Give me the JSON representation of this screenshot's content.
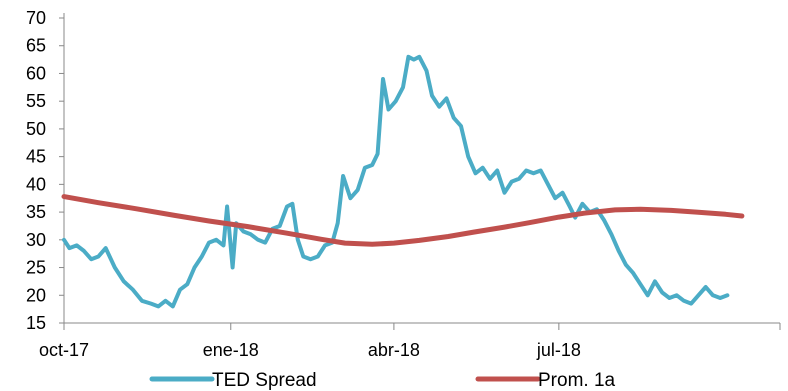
{
  "chart_data": {
    "type": "line",
    "title": "",
    "xlabel": "",
    "ylabel": "",
    "ylim": [
      15,
      70
    ],
    "yticks": [
      15,
      20,
      25,
      30,
      35,
      40,
      45,
      50,
      55,
      60,
      65,
      70
    ],
    "xlim": [
      "2017-10-01",
      "2018-10-31"
    ],
    "xticks": [
      {
        "date": "2017-10-01",
        "label": "oct-17"
      },
      {
        "date": "2018-01-01",
        "label": "ene-18"
      },
      {
        "date": "2018-04-01",
        "label": "abr-18"
      },
      {
        "date": "2018-07-01",
        "label": "jul-18"
      }
    ],
    "grid": false,
    "legend_position": "bottom",
    "series": [
      {
        "name": "TED Spread",
        "color": "#4bacc6",
        "points": [
          [
            "2017-10-01",
            30
          ],
          [
            "2017-10-04",
            28.5
          ],
          [
            "2017-10-08",
            29
          ],
          [
            "2017-10-12",
            28
          ],
          [
            "2017-10-16",
            26.5
          ],
          [
            "2017-10-20",
            27
          ],
          [
            "2017-10-24",
            28.5
          ],
          [
            "2017-10-29",
            25
          ],
          [
            "2017-11-03",
            22.5
          ],
          [
            "2017-11-08",
            21
          ],
          [
            "2017-11-13",
            19
          ],
          [
            "2017-11-18",
            18.5
          ],
          [
            "2017-11-22",
            18
          ],
          [
            "2017-11-26",
            19
          ],
          [
            "2017-11-30",
            18
          ],
          [
            "2017-12-04",
            21
          ],
          [
            "2017-12-08",
            22
          ],
          [
            "2017-12-12",
            25
          ],
          [
            "2017-12-16",
            27
          ],
          [
            "2017-12-20",
            29.5
          ],
          [
            "2017-12-24",
            30
          ],
          [
            "2017-12-28",
            29
          ],
          [
            "2017-12-30",
            36
          ],
          [
            "2018-01-02",
            25
          ],
          [
            "2018-01-04",
            33
          ],
          [
            "2018-01-08",
            31.5
          ],
          [
            "2018-01-12",
            31
          ],
          [
            "2018-01-16",
            30
          ],
          [
            "2018-01-20",
            29.5
          ],
          [
            "2018-01-24",
            32
          ],
          [
            "2018-01-28",
            32.5
          ],
          [
            "2018-02-01",
            36
          ],
          [
            "2018-02-04",
            36.5
          ],
          [
            "2018-02-07",
            30
          ],
          [
            "2018-02-10",
            27
          ],
          [
            "2018-02-14",
            26.5
          ],
          [
            "2018-02-18",
            27
          ],
          [
            "2018-02-22",
            29
          ],
          [
            "2018-02-26",
            29.5
          ],
          [
            "2018-03-01",
            33
          ],
          [
            "2018-03-04",
            41.5
          ],
          [
            "2018-03-08",
            37.5
          ],
          [
            "2018-03-12",
            39
          ],
          [
            "2018-03-16",
            43
          ],
          [
            "2018-03-20",
            43.5
          ],
          [
            "2018-03-23",
            45.5
          ],
          [
            "2018-03-26",
            59
          ],
          [
            "2018-03-29",
            53.5
          ],
          [
            "2018-04-02",
            55
          ],
          [
            "2018-04-06",
            57.5
          ],
          [
            "2018-04-09",
            63
          ],
          [
            "2018-04-12",
            62.5
          ],
          [
            "2018-04-15",
            63
          ],
          [
            "2018-04-19",
            60.5
          ],
          [
            "2018-04-22",
            56
          ],
          [
            "2018-04-26",
            54
          ],
          [
            "2018-04-30",
            55.5
          ],
          [
            "2018-05-04",
            52
          ],
          [
            "2018-05-08",
            50.5
          ],
          [
            "2018-05-12",
            45
          ],
          [
            "2018-05-16",
            42
          ],
          [
            "2018-05-20",
            43
          ],
          [
            "2018-05-24",
            41
          ],
          [
            "2018-05-28",
            42.5
          ],
          [
            "2018-06-01",
            38.5
          ],
          [
            "2018-06-05",
            40.5
          ],
          [
            "2018-06-09",
            41
          ],
          [
            "2018-06-13",
            42.5
          ],
          [
            "2018-06-17",
            42
          ],
          [
            "2018-06-21",
            42.5
          ],
          [
            "2018-06-25",
            40
          ],
          [
            "2018-06-29",
            37.5
          ],
          [
            "2018-07-03",
            38.5
          ],
          [
            "2018-07-07",
            36
          ],
          [
            "2018-07-10",
            34
          ],
          [
            "2018-07-14",
            36.5
          ],
          [
            "2018-07-18",
            35
          ],
          [
            "2018-07-22",
            35.5
          ],
          [
            "2018-07-26",
            33.5
          ],
          [
            "2018-07-30",
            31
          ],
          [
            "2018-08-03",
            28
          ],
          [
            "2018-08-07",
            25.5
          ],
          [
            "2018-08-11",
            24
          ],
          [
            "2018-08-15",
            22
          ],
          [
            "2018-08-19",
            20
          ],
          [
            "2018-08-23",
            22.5
          ],
          [
            "2018-08-27",
            20.5
          ],
          [
            "2018-08-31",
            19.5
          ],
          [
            "2018-09-04",
            20
          ],
          [
            "2018-09-08",
            19
          ],
          [
            "2018-09-12",
            18.5
          ],
          [
            "2018-09-16",
            20
          ],
          [
            "2018-09-20",
            21.5
          ],
          [
            "2018-09-24",
            20
          ],
          [
            "2018-09-28",
            19.5
          ],
          [
            "2018-10-02",
            20
          ]
        ]
      },
      {
        "name": "Prom. 1a",
        "color": "#c0504d",
        "points": [
          [
            "2017-10-01",
            37.8
          ],
          [
            "2017-10-20",
            36.7
          ],
          [
            "2017-11-10",
            35.6
          ],
          [
            "2017-12-01",
            34.4
          ],
          [
            "2017-12-20",
            33.4
          ],
          [
            "2018-01-10",
            32.4
          ],
          [
            "2018-02-01",
            31.2
          ],
          [
            "2018-02-20",
            30.1
          ],
          [
            "2018-03-05",
            29.4
          ],
          [
            "2018-03-20",
            29.2
          ],
          [
            "2018-04-01",
            29.4
          ],
          [
            "2018-04-15",
            29.9
          ],
          [
            "2018-05-01",
            30.6
          ],
          [
            "2018-05-15",
            31.4
          ],
          [
            "2018-06-01",
            32.3
          ],
          [
            "2018-06-15",
            33.1
          ],
          [
            "2018-07-01",
            34.1
          ],
          [
            "2018-07-15",
            34.8
          ],
          [
            "2018-08-01",
            35.4
          ],
          [
            "2018-08-15",
            35.5
          ],
          [
            "2018-09-01",
            35.3
          ],
          [
            "2018-09-15",
            35.0
          ],
          [
            "2018-10-01",
            34.6
          ],
          [
            "2018-10-10",
            34.3
          ]
        ]
      }
    ]
  }
}
